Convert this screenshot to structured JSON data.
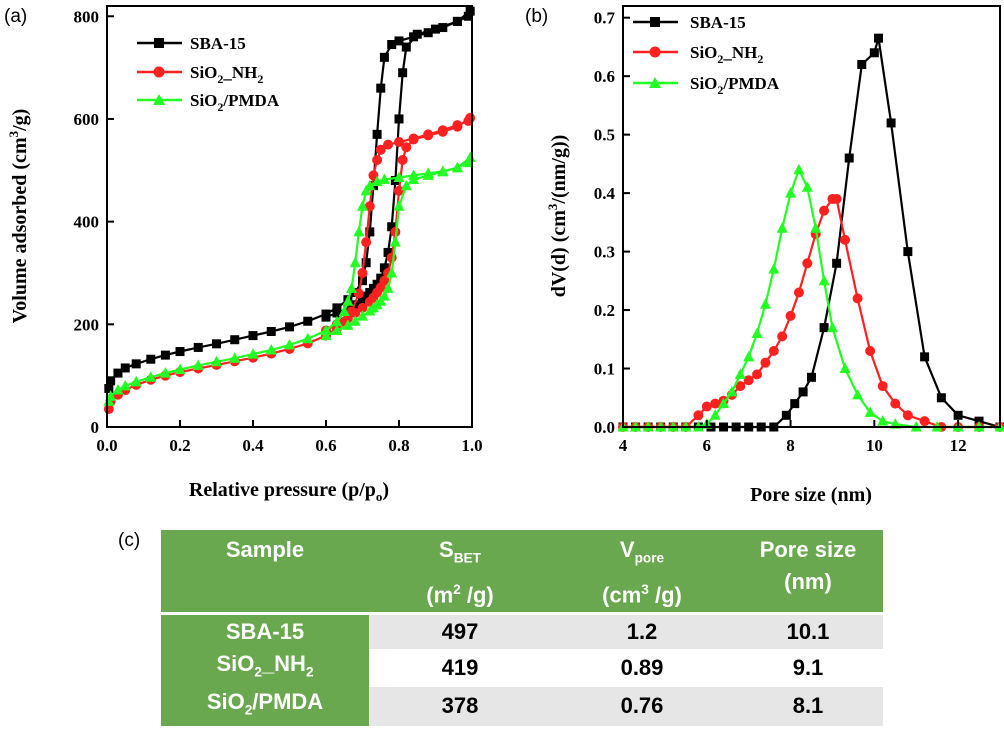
{
  "panels": {
    "a": "(a)",
    "b": "(b)",
    "c": "(c)"
  },
  "series_styles": [
    {
      "name": "SBA-15",
      "color": "#000000",
      "marker": "square"
    },
    {
      "name": "SiO2_NH2",
      "color": "#ff2020",
      "marker": "circle"
    },
    {
      "name": "SiO2/PMDA",
      "color": "#22ff22",
      "marker": "triangle"
    }
  ],
  "legend_labels": {
    "sba": "SBA-15",
    "nh2_main": "SiO",
    "nh2_sub1": "2",
    "nh2_mid": "_NH",
    "nh2_sub2": "2",
    "pmda_main": "SiO",
    "pmda_sub": "2",
    "pmda_rest": "/PMDA"
  },
  "chart_data": [
    {
      "id": "a",
      "type": "line",
      "xlabel_main": "Relative pressure (p/p",
      "xlabel_sub": "o",
      "xlabel_end": ")",
      "ylabel_main": "Volume adsorbed (cm",
      "ylabel_sup": "3",
      "ylabel_end": "/g)",
      "xlim": [
        0,
        1.0
      ],
      "ylim": [
        0,
        820
      ],
      "xticks": [
        "0.0",
        "0.2",
        "0.4",
        "0.6",
        "0.8",
        "1.0"
      ],
      "yticks": [
        "0",
        "200",
        "400",
        "600",
        "800"
      ],
      "legend_position": "top-left",
      "series": [
        {
          "name": "SBA-15",
          "color": "#000000",
          "marker": "square",
          "x": [
            0.005,
            0.01,
            0.03,
            0.05,
            0.08,
            0.12,
            0.16,
            0.2,
            0.25,
            0.3,
            0.35,
            0.4,
            0.45,
            0.5,
            0.55,
            0.6,
            0.63,
            0.66,
            0.68,
            0.7,
            0.71,
            0.72,
            0.73,
            0.74,
            0.75,
            0.76,
            0.78,
            0.8,
            0.84,
            0.88,
            0.92,
            0.96,
            0.99,
            0.995,
            0.96,
            0.9,
            0.85,
            0.82,
            0.81,
            0.8,
            0.79,
            0.78,
            0.77,
            0.76,
            0.75,
            0.74,
            0.73,
            0.72,
            0.71,
            0.7,
            0.68,
            0.66,
            0.63,
            0.6
          ],
          "y": [
            75,
            90,
            105,
            115,
            123,
            132,
            140,
            147,
            155,
            162,
            170,
            178,
            186,
            195,
            206,
            220,
            232,
            248,
            262,
            285,
            320,
            380,
            470,
            570,
            660,
            720,
            745,
            752,
            760,
            768,
            778,
            790,
            800,
            810,
            790,
            775,
            765,
            740,
            690,
            600,
            480,
            390,
            340,
            310,
            290,
            278,
            270,
            262,
            255,
            248,
            238,
            230,
            222,
            214
          ]
        },
        {
          "name": "SiO2_NH2",
          "color": "#ff2020",
          "marker": "circle",
          "x": [
            0.005,
            0.01,
            0.03,
            0.05,
            0.08,
            0.12,
            0.16,
            0.2,
            0.25,
            0.3,
            0.35,
            0.4,
            0.45,
            0.5,
            0.55,
            0.6,
            0.63,
            0.65,
            0.67,
            0.69,
            0.7,
            0.71,
            0.72,
            0.73,
            0.74,
            0.75,
            0.77,
            0.8,
            0.84,
            0.88,
            0.92,
            0.96,
            0.99,
            0.995,
            0.96,
            0.92,
            0.88,
            0.84,
            0.82,
            0.81,
            0.8,
            0.79,
            0.78,
            0.77,
            0.76,
            0.75,
            0.74,
            0.73,
            0.72,
            0.7,
            0.68,
            0.66,
            0.63,
            0.6
          ],
          "y": [
            35,
            50,
            63,
            72,
            82,
            92,
            100,
            107,
            114,
            121,
            128,
            135,
            143,
            152,
            163,
            178,
            192,
            205,
            225,
            260,
            300,
            360,
            430,
            490,
            520,
            540,
            550,
            555,
            562,
            570,
            578,
            588,
            596,
            602,
            585,
            575,
            568,
            560,
            545,
            520,
            460,
            380,
            330,
            300,
            285,
            272,
            262,
            252,
            244,
            232,
            222,
            212,
            200,
            188
          ]
        },
        {
          "name": "SiO2/PMDA",
          "color": "#22ff22",
          "marker": "triangle",
          "x": [
            0.005,
            0.01,
            0.03,
            0.05,
            0.08,
            0.12,
            0.16,
            0.2,
            0.25,
            0.3,
            0.35,
            0.4,
            0.45,
            0.5,
            0.55,
            0.6,
            0.63,
            0.65,
            0.66,
            0.67,
            0.68,
            0.69,
            0.7,
            0.71,
            0.72,
            0.74,
            0.76,
            0.8,
            0.84,
            0.88,
            0.92,
            0.96,
            0.99,
            0.995,
            0.96,
            0.92,
            0.88,
            0.84,
            0.82,
            0.8,
            0.79,
            0.78,
            0.77,
            0.76,
            0.75,
            0.74,
            0.73,
            0.72,
            0.7,
            0.68,
            0.66,
            0.63,
            0.6
          ],
          "y": [
            50,
            60,
            72,
            80,
            88,
            97,
            105,
            112,
            120,
            127,
            134,
            142,
            150,
            160,
            172,
            188,
            205,
            225,
            245,
            270,
            320,
            380,
            430,
            460,
            470,
            478,
            482,
            486,
            490,
            494,
            498,
            505,
            515,
            525,
            505,
            497,
            490,
            482,
            470,
            430,
            360,
            300,
            270,
            255,
            245,
            238,
            232,
            226,
            216,
            206,
            198,
            188,
            178
          ]
        }
      ]
    },
    {
      "id": "b",
      "type": "line",
      "xlabel": "Pore size (nm)",
      "ylabel_main": "dV(d) (cm",
      "ylabel_sup": "3",
      "ylabel_end": "/(nm/g))",
      "xlim": [
        4,
        13
      ],
      "ylim": [
        0,
        0.72
      ],
      "xticks": [
        "4",
        "6",
        "8",
        "10",
        "12"
      ],
      "yticks": [
        "0.0",
        "0.1",
        "0.2",
        "0.3",
        "0.4",
        "0.5",
        "0.6",
        "0.7"
      ],
      "legend_position": "top-left",
      "series": [
        {
          "name": "SBA-15",
          "color": "#000000",
          "marker": "square",
          "x": [
            4.0,
            4.3,
            4.6,
            4.9,
            5.2,
            5.5,
            5.8,
            6.1,
            6.4,
            6.7,
            7.0,
            7.3,
            7.6,
            7.9,
            8.1,
            8.3,
            8.5,
            8.8,
            9.1,
            9.4,
            9.7,
            10.0,
            10.1,
            10.4,
            10.8,
            11.2,
            11.6,
            12.0,
            12.5,
            13.0
          ],
          "y": [
            0.0,
            0.0,
            0.0,
            0.0,
            0.0,
            0.0,
            0.0,
            0.0,
            0.0,
            0.0,
            0.0,
            0.0,
            0.0,
            0.02,
            0.04,
            0.06,
            0.085,
            0.17,
            0.28,
            0.46,
            0.62,
            0.64,
            0.665,
            0.52,
            0.3,
            0.12,
            0.05,
            0.02,
            0.01,
            0.0
          ]
        },
        {
          "name": "SiO2_NH2",
          "color": "#ff2020",
          "marker": "circle",
          "x": [
            4.0,
            4.3,
            4.6,
            4.9,
            5.2,
            5.5,
            5.8,
            6.0,
            6.2,
            6.4,
            6.6,
            6.8,
            7.0,
            7.2,
            7.4,
            7.6,
            7.8,
            8.0,
            8.2,
            8.4,
            8.6,
            8.8,
            9.0,
            9.1,
            9.3,
            9.6,
            9.9,
            10.2,
            10.5,
            10.8,
            11.2,
            11.6,
            12.0,
            12.5,
            13.0
          ],
          "y": [
            0.0,
            0.0,
            0.0,
            0.0,
            0.0,
            0.0,
            0.02,
            0.035,
            0.04,
            0.045,
            0.055,
            0.07,
            0.08,
            0.09,
            0.11,
            0.13,
            0.155,
            0.19,
            0.23,
            0.28,
            0.33,
            0.37,
            0.39,
            0.39,
            0.32,
            0.22,
            0.13,
            0.07,
            0.04,
            0.02,
            0.01,
            0.0,
            0.0,
            0.0,
            0.0
          ]
        },
        {
          "name": "SiO2/PMDA",
          "color": "#22ff22",
          "marker": "triangle",
          "x": [
            4.0,
            4.3,
            4.6,
            4.9,
            5.2,
            5.5,
            5.8,
            6.0,
            6.2,
            6.4,
            6.6,
            6.8,
            7.0,
            7.2,
            7.4,
            7.6,
            7.8,
            8.0,
            8.2,
            8.4,
            8.6,
            8.8,
            9.0,
            9.3,
            9.6,
            9.9,
            10.2,
            10.5,
            11.0,
            11.5,
            12.0,
            12.5,
            13.0
          ],
          "y": [
            0.0,
            0.0,
            0.0,
            0.0,
            0.0,
            0.0,
            0.0,
            0.005,
            0.02,
            0.04,
            0.06,
            0.09,
            0.12,
            0.16,
            0.21,
            0.27,
            0.34,
            0.4,
            0.44,
            0.41,
            0.34,
            0.25,
            0.17,
            0.1,
            0.055,
            0.025,
            0.01,
            0.005,
            0.0,
            0.0,
            0.0,
            0.0,
            0.0
          ]
        }
      ]
    },
    {
      "id": "c",
      "type": "table",
      "headers": {
        "sample": "Sample",
        "sbet_main": "S",
        "sbet_sub": "BET",
        "sbet_unit_a": "(m",
        "sbet_unit_sup": "2",
        "sbet_unit_b": " /g)",
        "vpore_main": "V",
        "vpore_sub": "pore",
        "vpore_unit_a": "(cm",
        "vpore_unit_sup": "3",
        "vpore_unit_b": " /g)",
        "pore_main": "Pore size",
        "pore_unit": "(nm)"
      },
      "rows": [
        {
          "sample_a": "SBA-15",
          "sample_sub1": "",
          "sample_b": "",
          "sample_sub2": "",
          "sample_c": "",
          "sbet": "497",
          "vpore": "1.2",
          "pore": "10.1"
        },
        {
          "sample_a": "SiO",
          "sample_sub1": "2",
          "sample_b": "_NH",
          "sample_sub2": "2",
          "sample_c": "",
          "sbet": "419",
          "vpore": "0.89",
          "pore": "9.1"
        },
        {
          "sample_a": "SiO",
          "sample_sub1": "2",
          "sample_b": "/PMDA",
          "sample_sub2": "",
          "sample_c": "",
          "sbet": "378",
          "vpore": "0.76",
          "pore": "8.1"
        }
      ]
    }
  ]
}
